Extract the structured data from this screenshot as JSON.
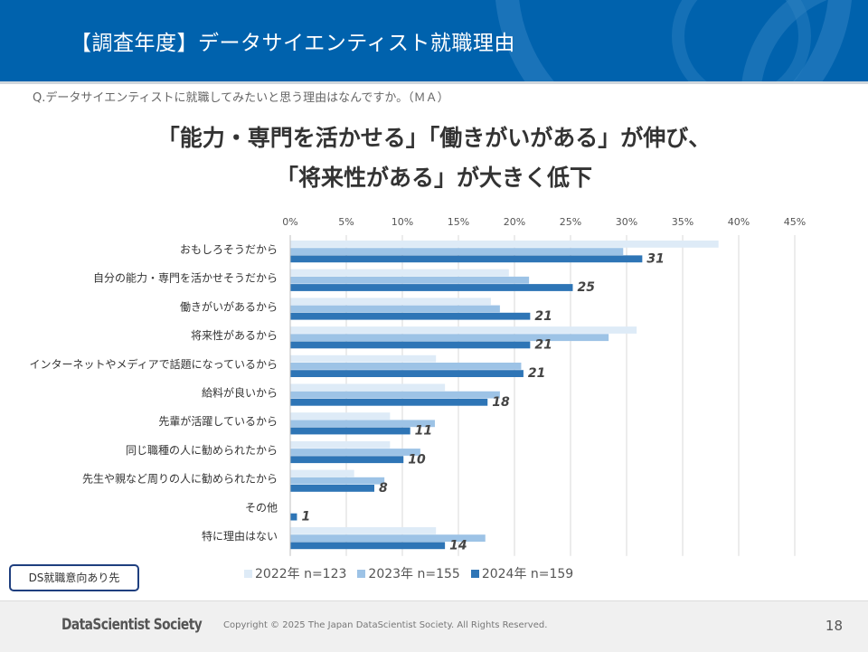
{
  "header": {
    "title": "【調査年度】データサイエンティスト就職理由"
  },
  "question": "Q.データサイエンティストに就職してみたいと思う理由はなんですか。（ＭＡ）",
  "headline": {
    "line1": "「能力・専門を活かせる」「働きがいがある」が伸び、",
    "line2": "「将来性がある」が大きく低下"
  },
  "chart_data": {
    "type": "bar",
    "orientation": "horizontal",
    "xlim": [
      0,
      45
    ],
    "ticks": [
      "0%",
      "5%",
      "10%",
      "15%",
      "20%",
      "25%",
      "30%",
      "35%",
      "40%",
      "45%"
    ],
    "tick_values": [
      0,
      5,
      10,
      15,
      20,
      25,
      30,
      35,
      40,
      45
    ],
    "grid": true,
    "legend_position": "bottom",
    "categories": [
      "おもしろそうだから",
      "自分の能力・専門を活かせそうだから",
      "働きがいがあるから",
      "将来性があるから",
      "インターネットやメディアで話題になっているから",
      "給料が良いから",
      "先輩が活躍しているから",
      "同じ職種の人に勧められたから",
      "先生や親など周りの人に勧められたから",
      "その他",
      "特に理由はない"
    ],
    "series": [
      {
        "name": "2022年 n=123",
        "color": "#deebf7",
        "values": [
          38.2,
          19.5,
          17.9,
          30.9,
          13.0,
          13.8,
          8.9,
          8.9,
          5.7,
          0,
          13.0
        ]
      },
      {
        "name": "2023年 n=155",
        "color": "#9dc3e6",
        "values": [
          29.7,
          21.3,
          18.7,
          28.4,
          20.6,
          18.7,
          12.9,
          11.6,
          8.4,
          0,
          17.4
        ]
      },
      {
        "name": "2024年 n=159",
        "color": "#2e75b6",
        "values": [
          31.4,
          25.2,
          21.4,
          21.4,
          20.8,
          17.6,
          10.7,
          10.1,
          7.5,
          0.6,
          13.8
        ]
      }
    ],
    "data_labels": [
      "31",
      "25",
      "21",
      "21",
      "21",
      "18",
      "11",
      "10",
      "8",
      "1",
      "14"
    ]
  },
  "ds_box_label": "DS就職意向あり先",
  "footer": {
    "logo": "DataScientist Society",
    "copyright": "Copyright © 2025  The Japan DataScientist Society. All Rights Reserved.",
    "page": "18"
  }
}
